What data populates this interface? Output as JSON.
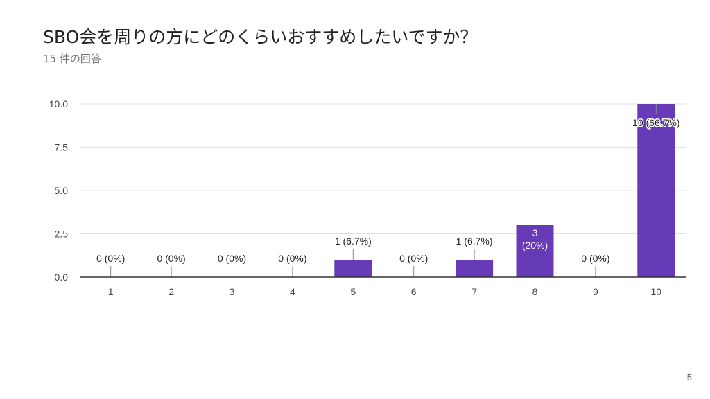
{
  "slide": {
    "title": "SBO会を周りの方にどのくらいおすすめしたいですか？",
    "subtitle": "15 件の回答",
    "page_number": "5"
  },
  "colors": {
    "bar": "#673ab7",
    "grid": "#e0e0e0",
    "axis": "#333333"
  },
  "chart_data": {
    "type": "bar",
    "title": "",
    "xlabel": "",
    "ylabel": "",
    "categories": [
      "1",
      "2",
      "3",
      "4",
      "5",
      "6",
      "7",
      "8",
      "9",
      "10"
    ],
    "values": [
      0,
      0,
      0,
      0,
      1,
      0,
      1,
      3,
      0,
      10
    ],
    "percent_labels": [
      "0 (0%)",
      "0 (0%)",
      "0 (0%)",
      "0 (0%)",
      "1 (6.7%)",
      "0 (0%)",
      "1 (6.7%)",
      "3\n(20%)",
      "0 (0%)",
      "10 (66.7%)"
    ],
    "ylim": [
      0,
      10
    ],
    "yticks": [
      "0.0",
      "2.5",
      "5.0",
      "7.5",
      "10.0"
    ],
    "grid": true,
    "legend": "none"
  }
}
